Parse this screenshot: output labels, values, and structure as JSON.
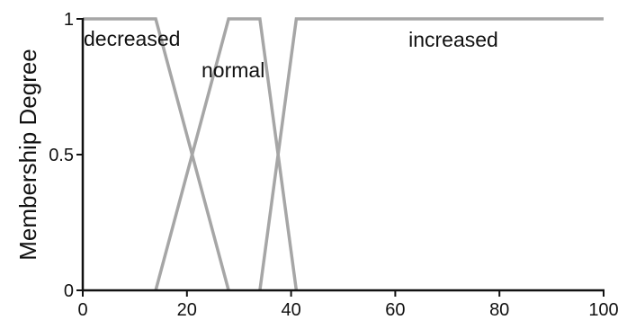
{
  "chart_data": {
    "type": "line",
    "title": "",
    "xlabel": "",
    "ylabel": "Membership Degree",
    "xlim": [
      0,
      100
    ],
    "ylim": [
      0,
      1
    ],
    "x_ticks": [
      0,
      20,
      40,
      60,
      80,
      100
    ],
    "x_tick_labels": [
      "0",
      "20",
      "40",
      "60",
      "80",
      "100"
    ],
    "y_ticks": [
      0,
      0.5,
      1
    ],
    "y_tick_labels": [
      "0",
      "0.5",
      "1"
    ],
    "grid": false,
    "line_color": "#a6a6a6",
    "series": [
      {
        "name": "decreased",
        "x": [
          0,
          14,
          28
        ],
        "y": [
          1,
          1,
          0
        ]
      },
      {
        "name": "normal",
        "x": [
          14,
          28,
          34,
          41
        ],
        "y": [
          0,
          1,
          1,
          0
        ]
      },
      {
        "name": "increased",
        "x": [
          34,
          41,
          100
        ],
        "y": [
          0,
          1,
          1
        ]
      }
    ]
  }
}
